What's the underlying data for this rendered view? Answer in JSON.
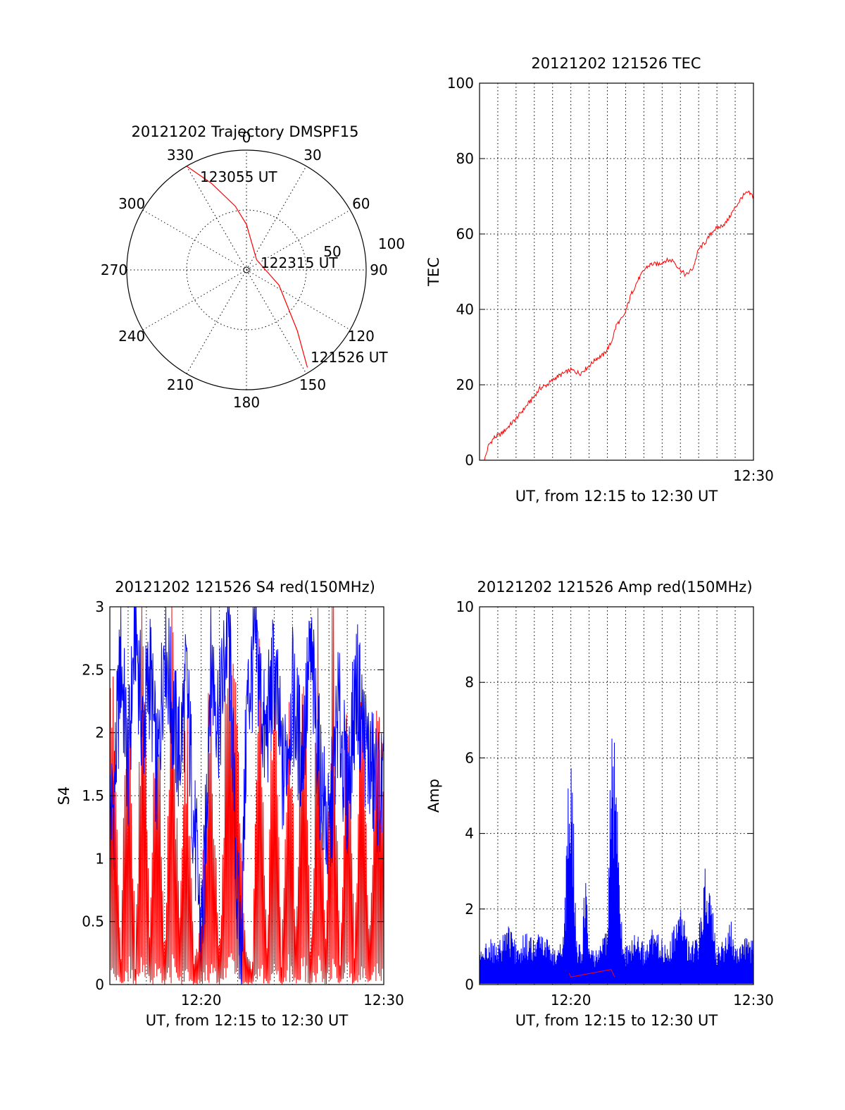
{
  "chart_data": [
    {
      "id": "trajectory",
      "type": "polar",
      "title": "20121202 Trajectory DMSPF15",
      "angle_labels": [
        "0",
        "30",
        "60",
        "90",
        "120",
        "150",
        "180",
        "210",
        "240",
        "270",
        "300",
        "330"
      ],
      "radius_labels": [
        "50",
        "100"
      ],
      "rlim": [
        0,
        100
      ],
      "track": [
        {
          "az": 330,
          "el": 0
        },
        {
          "az": 338,
          "el": 22
        },
        {
          "az": 350,
          "el": 46
        },
        {
          "az": 0,
          "el": 62
        },
        {
          "az": 45,
          "el": 88
        },
        {
          "az": 115,
          "el": 70
        },
        {
          "az": 140,
          "el": 34
        },
        {
          "az": 148,
          "el": 4
        }
      ],
      "annotations": [
        "123055 UT",
        "122315 UT",
        "121526 UT"
      ],
      "color": "#ff0000"
    },
    {
      "id": "tec",
      "type": "line",
      "title": "20121202 121526 TEC",
      "xlabel": "UT, from 12:15 to 12:30 UT",
      "ylabel": "TEC",
      "xlim_min": [
        735,
        750
      ],
      "ylim": [
        0,
        100
      ],
      "yticks": [
        0,
        20,
        40,
        60,
        80,
        100
      ],
      "xtick_labels": [
        {
          "at": 750,
          "label": "12:30"
        }
      ],
      "series": [
        {
          "color": "#ff0000",
          "x": [
            735.27,
            735.5,
            735.8,
            736.2,
            736.6,
            737.0,
            737.5,
            738.0,
            738.3,
            738.7,
            739.2,
            739.6,
            740.0,
            740.5,
            741.0,
            741.4,
            741.8,
            742.2,
            742.5,
            742.9,
            743.3,
            743.7,
            744.1,
            744.4,
            744.8,
            745.2,
            745.6,
            745.9,
            746.3,
            746.7,
            747.0,
            747.4,
            747.8,
            748.2,
            748.5,
            749.0,
            749.4,
            749.7,
            750.0
          ],
          "y": [
            0,
            4,
            6,
            7,
            9,
            11,
            14,
            17,
            19,
            20,
            22,
            23,
            24,
            23,
            25,
            27,
            28,
            31,
            36,
            38,
            44,
            48,
            51,
            52,
            52,
            53,
            53,
            51,
            49,
            51,
            56,
            58,
            61,
            62,
            63,
            67,
            70,
            71,
            70
          ]
        }
      ]
    },
    {
      "id": "s4",
      "type": "line",
      "title": "20121202 121526 S4 red(150MHz)",
      "xlabel": "UT, from 12:15 to 12:30 UT",
      "ylabel": "S4",
      "xlim_min": [
        735,
        750
      ],
      "ylim": [
        0,
        3
      ],
      "ytick_labels": [
        "0",
        "0.5",
        "1",
        "1.5",
        "2",
        "2.5",
        "3"
      ],
      "xtick_labels": [
        {
          "at": 740,
          "label": "12:20"
        },
        {
          "at": 750,
          "label": "12:30"
        }
      ],
      "series": [
        {
          "color": "#ff0000",
          "x": [
            735.2,
            735.6,
            736.0,
            736.4,
            736.8,
            737.2,
            737.6,
            738.0,
            738.4,
            738.8,
            739.2,
            739.6,
            740.0,
            740.5,
            741.0,
            741.5,
            742.0,
            742.4,
            742.8,
            743.2,
            743.6,
            744.0,
            744.4,
            744.8,
            745.2,
            745.6,
            746.0,
            746.4,
            746.8,
            747.2,
            747.6,
            748.0,
            748.4,
            748.8,
            749.2,
            749.6,
            750.0
          ],
          "y": [
            2.2,
            0.2,
            2.8,
            0.1,
            3.0,
            0.3,
            2.6,
            0.1,
            2.9,
            0.4,
            2.1,
            0.2,
            0.5,
            2.4,
            0.1,
            3.0,
            1.8,
            0.4,
            0.1,
            2.7,
            0.2,
            3.0,
            0.1,
            2.5,
            0.3,
            2.9,
            0.1,
            2.6,
            0.2,
            3.0,
            0.1,
            2.4,
            0.2,
            2.8,
            0.3,
            2.0,
            1.6
          ]
        },
        {
          "color": "#0000ff",
          "x": [
            735.2,
            735.6,
            736.0,
            736.4,
            736.8,
            737.2,
            737.6,
            738.0,
            738.4,
            738.8,
            739.2,
            739.6,
            740.0,
            740.2,
            740.5,
            741.0,
            741.5,
            742.0,
            742.2,
            742.5,
            743.0,
            743.5,
            744.0,
            744.5,
            745.0,
            745.5,
            746.0,
            746.5,
            747.0,
            747.5,
            748.0,
            748.5,
            749.0,
            749.5,
            750.0
          ],
          "y": [
            1.4,
            2.6,
            1.7,
            2.9,
            2.0,
            2.5,
            1.6,
            2.8,
            2.2,
            1.8,
            2.4,
            1.3,
            0.4,
            0.9,
            2.6,
            2.1,
            2.9,
            0.6,
            0.3,
            2.2,
            2.7,
            1.9,
            2.5,
            1.6,
            2.3,
            1.8,
            2.6,
            1.7,
            1.1,
            2.2,
            1.5,
            2.4,
            1.9,
            1.6,
            1.5
          ]
        }
      ]
    },
    {
      "id": "amp",
      "type": "line",
      "title": "20121202 121526 Amp red(150MHz)",
      "xlabel": "UT, from 12:15 to 12:30 UT",
      "ylabel": "Amp",
      "xlim_min": [
        735,
        750
      ],
      "ylim": [
        0,
        10
      ],
      "yticks": [
        0,
        2,
        4,
        6,
        8,
        10
      ],
      "xtick_labels": [
        {
          "at": 740,
          "label": "12:20"
        },
        {
          "at": 750,
          "label": "12:30"
        }
      ],
      "series": [
        {
          "color": "#0000ff",
          "x": [
            735.0,
            735.5,
            736.0,
            736.5,
            737.0,
            737.5,
            738.0,
            738.5,
            739.0,
            739.5,
            739.7,
            739.8,
            739.95,
            740.1,
            740.3,
            740.6,
            740.8,
            741.0,
            741.3,
            741.5,
            742.0,
            742.2,
            742.4,
            742.6,
            742.8,
            743.0,
            743.5,
            744.0,
            744.5,
            745.0,
            745.5,
            746.0,
            746.5,
            747.0,
            747.3,
            747.6,
            748.0,
            748.5,
            748.8,
            749.0,
            749.5,
            750.0
          ],
          "y": [
            0.9,
            1.3,
            1.0,
            1.8,
            1.1,
            1.4,
            1.2,
            1.6,
            1.0,
            1.3,
            2.4,
            5.2,
            6.3,
            5.5,
            1.2,
            1.0,
            3.4,
            1.1,
            0.9,
            1.2,
            1.5,
            6.5,
            6.8,
            5.6,
            1.3,
            1.0,
            1.4,
            1.1,
            1.5,
            1.2,
            1.3,
            2.2,
            1.1,
            1.3,
            3.3,
            2.8,
            1.1,
            1.3,
            1.9,
            1.0,
            1.3,
            1.2
          ]
        },
        {
          "color": "#ff0000",
          "x": [
            739.9,
            740.0,
            742.2,
            742.4
          ],
          "y": [
            0.3,
            0.2,
            0.4,
            0.2
          ]
        }
      ]
    }
  ]
}
